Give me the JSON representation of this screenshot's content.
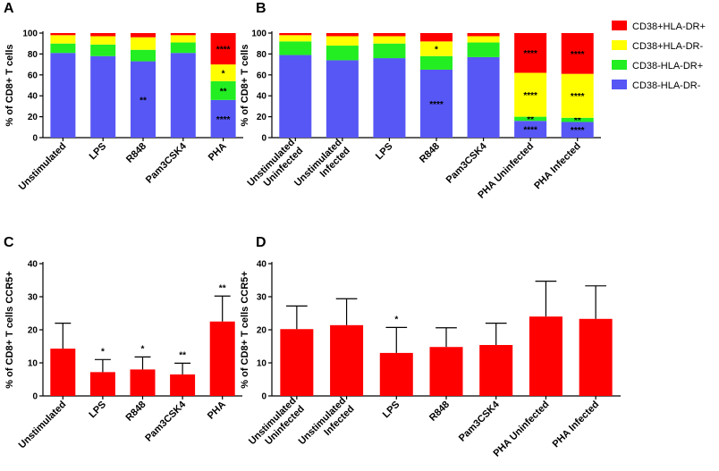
{
  "colors": {
    "red": "#ff0000",
    "yellow": "#ffff00",
    "green": "#22ee22",
    "blue": "#5757f5",
    "axis": "#000000"
  },
  "legend": [
    {
      "label": "CD38+HLA-DR+",
      "color": "#ff0000"
    },
    {
      "label": "CD38+HLA-DR-",
      "color": "#ffff00"
    },
    {
      "label": "CD38-HLA-DR+",
      "color": "#22ee22"
    },
    {
      "label": "CD38-HLA-DR-",
      "color": "#5757f5"
    }
  ],
  "chart_data": [
    {
      "panel": "A",
      "type": "bar",
      "stacked": true,
      "ylabel": "% of CD8+ T cells",
      "ylim": [
        0,
        100
      ],
      "yticks": [
        0,
        20,
        40,
        60,
        80,
        100
      ],
      "categories": [
        [
          "Unstimulated"
        ],
        [
          "LPS"
        ],
        [
          "R848"
        ],
        [
          "Pam3CSK4"
        ],
        [
          "PHA"
        ]
      ],
      "series": [
        {
          "name": "CD38-HLA-DR-",
          "values": [
            81,
            78,
            73,
            81,
            36
          ],
          "sig": [
            "",
            "",
            "**",
            "",
            "****"
          ]
        },
        {
          "name": "CD38-HLA-DR+",
          "values": [
            9,
            11,
            11,
            10,
            18
          ],
          "sig": [
            "",
            "",
            "",
            "",
            "**"
          ]
        },
        {
          "name": "CD38+HLA-DR-",
          "values": [
            8,
            8,
            12,
            7,
            16
          ],
          "sig": [
            "",
            "",
            "",
            "",
            "*"
          ]
        },
        {
          "name": "CD38+HLA-DR+",
          "values": [
            2,
            3,
            4,
            2,
            30
          ],
          "sig": [
            "",
            "",
            "",
            "",
            "****"
          ]
        }
      ]
    },
    {
      "panel": "B",
      "type": "bar",
      "stacked": true,
      "ylabel": "% of CD8+ T cells",
      "ylim": [
        0,
        100
      ],
      "yticks": [
        0,
        20,
        40,
        60,
        80,
        100
      ],
      "categories": [
        [
          "Unstimulated",
          "Uninfected"
        ],
        [
          "Unstimulated",
          "Infected"
        ],
        [
          "LPS"
        ],
        [
          "R848"
        ],
        [
          "Pam3CSK4"
        ],
        [
          "PHA Uninfected"
        ],
        [
          "PHA Infected"
        ]
      ],
      "series": [
        {
          "name": "CD38-HLA-DR-",
          "values": [
            79,
            74,
            76,
            65,
            77,
            16,
            15
          ],
          "sig": [
            "",
            "",
            "",
            "****",
            "",
            "****",
            "****"
          ]
        },
        {
          "name": "CD38-HLA-DR+",
          "values": [
            13,
            14,
            14,
            13,
            14,
            4,
            4
          ],
          "sig": [
            "",
            "",
            "",
            "",
            "",
            "**",
            "**"
          ]
        },
        {
          "name": "CD38+HLA-DR-",
          "values": [
            6,
            9,
            7,
            14,
            6,
            42,
            42
          ],
          "sig": [
            "",
            "",
            "",
            "*",
            "",
            "****",
            "****"
          ]
        },
        {
          "name": "CD38+HLA-DR+",
          "values": [
            2,
            3,
            3,
            8,
            3,
            38,
            39
          ],
          "sig": [
            "",
            "",
            "",
            "",
            "",
            "****",
            "****"
          ]
        }
      ]
    },
    {
      "panel": "C",
      "type": "bar",
      "ylabel": "% of CD8+ T cells CCR5+",
      "ylim": [
        0,
        40
      ],
      "yticks": [
        0,
        10,
        20,
        30,
        40
      ],
      "categories": [
        [
          "Unstimulated"
        ],
        [
          "LPS"
        ],
        [
          "R848"
        ],
        [
          "Pam3CSK4"
        ],
        [
          "PHA"
        ]
      ],
      "values": [
        14.3,
        7.2,
        8.0,
        6.5,
        22.5
      ],
      "errors": [
        7.7,
        3.8,
        3.8,
        3.4,
        7.7
      ],
      "sig": [
        "",
        "*",
        "*",
        "**",
        "**"
      ]
    },
    {
      "panel": "D",
      "type": "bar",
      "ylabel": "% of CD8+ T cells CCR5+",
      "ylim": [
        0,
        40
      ],
      "yticks": [
        0,
        10,
        20,
        30,
        40
      ],
      "categories": [
        [
          "Unstimulated",
          "Uninfected"
        ],
        [
          "Unstimulated",
          "Infected"
        ],
        [
          "LPS"
        ],
        [
          "R848"
        ],
        [
          "Pam3CSK4"
        ],
        [
          "PHA Uninfected"
        ],
        [
          "PHA Infected"
        ]
      ],
      "values": [
        20.2,
        21.4,
        13.0,
        14.8,
        15.4,
        24.0,
        23.3
      ],
      "errors": [
        7.0,
        8.0,
        7.7,
        5.8,
        6.6,
        10.7,
        10.0
      ],
      "sig": [
        "",
        "",
        "*",
        "",
        "",
        "",
        ""
      ]
    }
  ]
}
